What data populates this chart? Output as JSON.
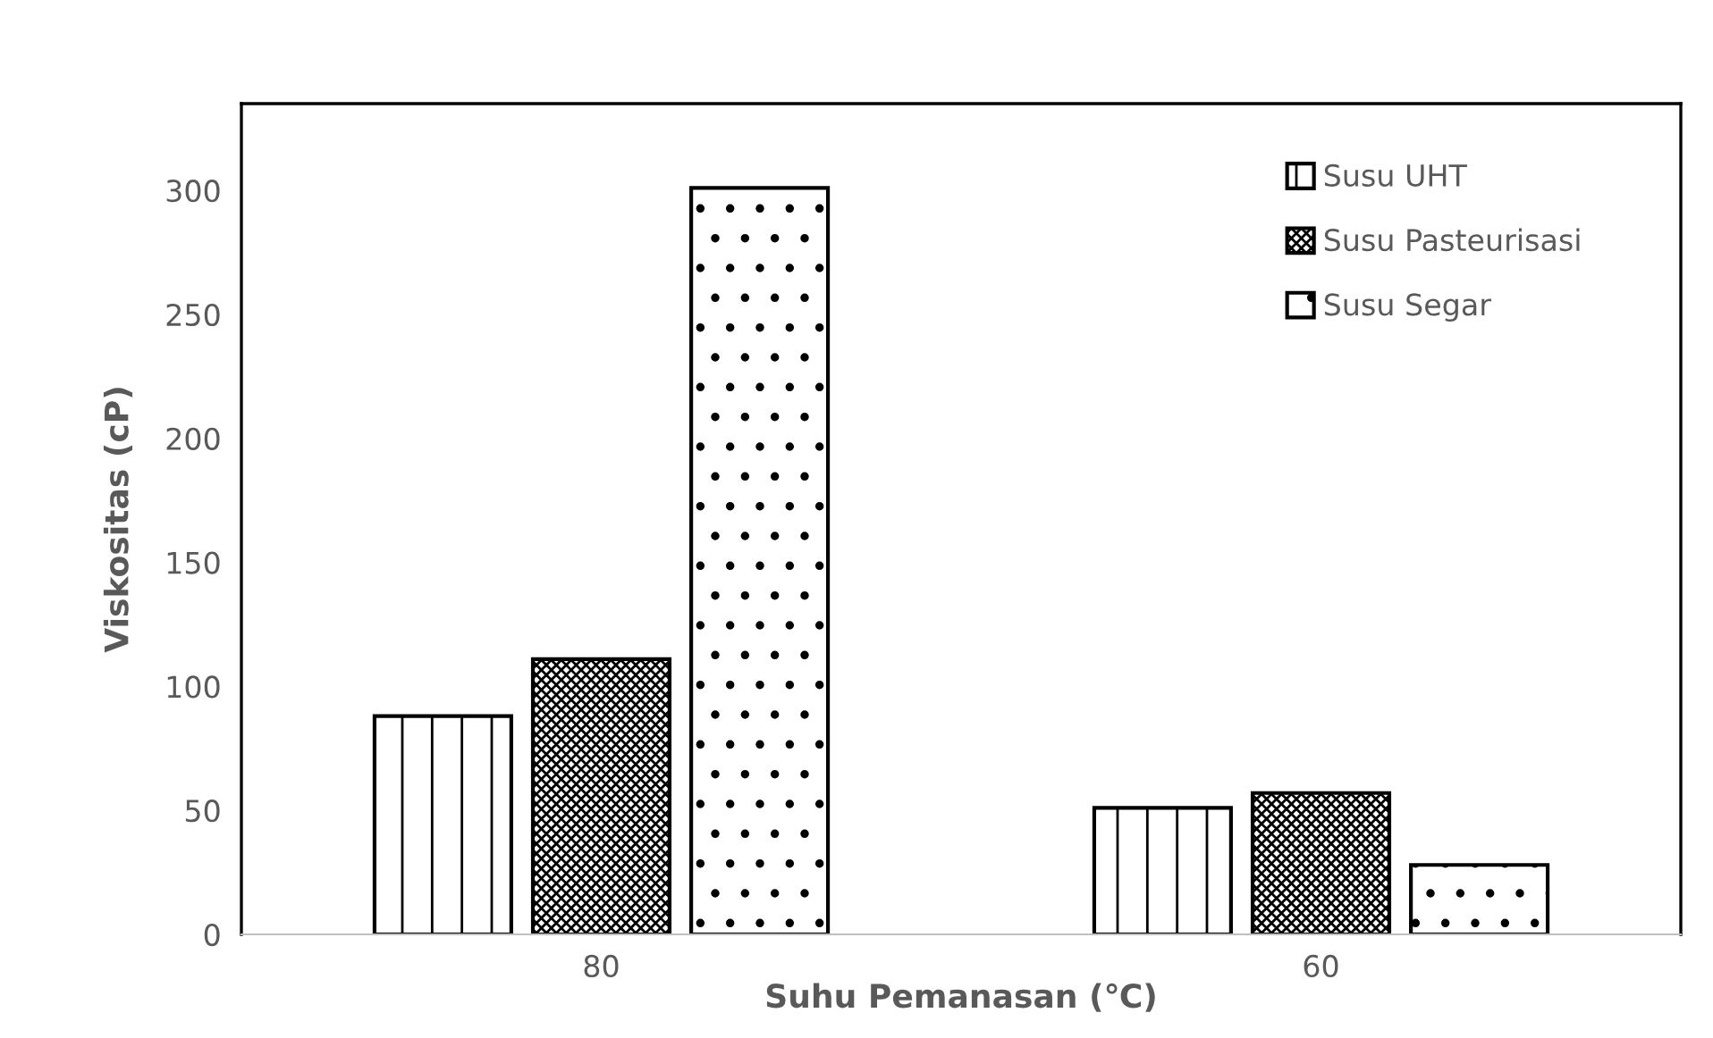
{
  "chart_data": {
    "type": "bar",
    "xlabel": "Suhu Pemanasan (℃)",
    "ylabel": "Viskositas (cP)",
    "categories": [
      "80",
      "60"
    ],
    "series": [
      {
        "name": "Susu UHT",
        "color": "#000000",
        "values": [
          88,
          51
        ]
      },
      {
        "name": "Susu Pasteurisasi",
        "color": "#000000",
        "values": [
          111,
          57
        ]
      },
      {
        "name": "Susu Segar",
        "color": "#000000",
        "values": [
          301,
          28
        ]
      }
    ],
    "ylim": [
      0,
      335
    ],
    "yticks": [
      0,
      50,
      100,
      150,
      200,
      250,
      300
    ],
    "grid": false,
    "legend": "top right"
  }
}
